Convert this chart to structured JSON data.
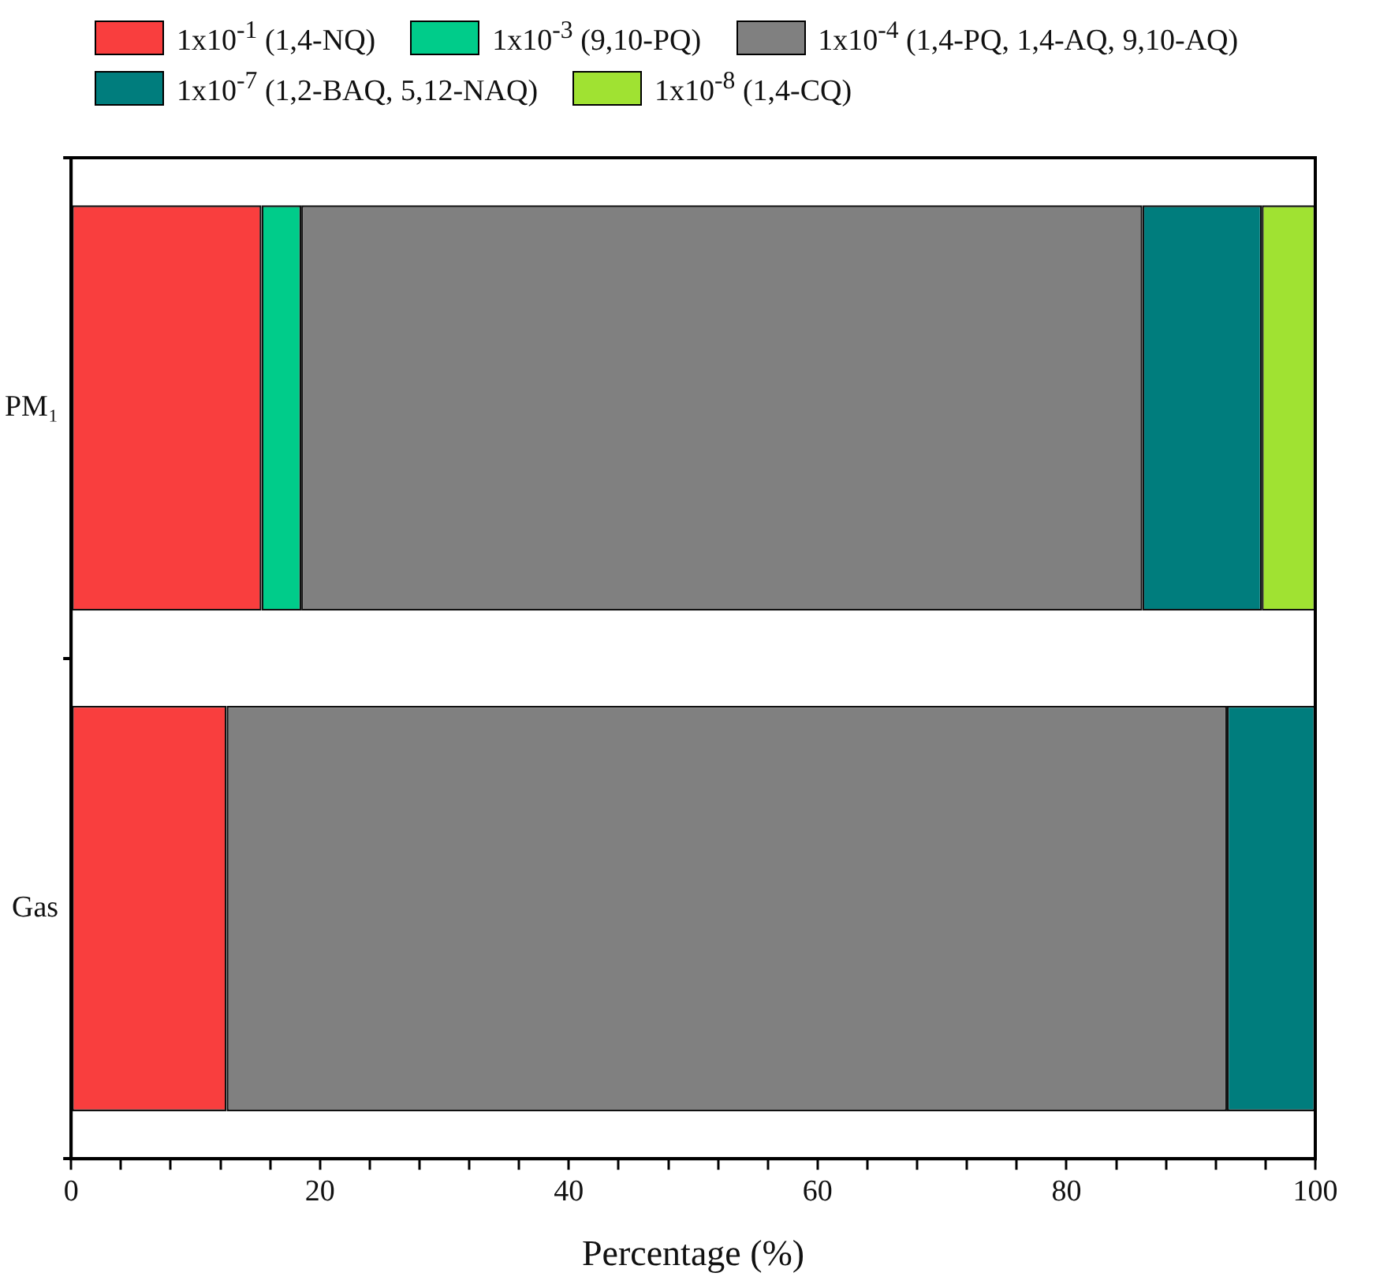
{
  "chart_data": {
    "type": "bar",
    "orientation": "horizontal",
    "stacked": true,
    "xlabel": "Percentage (%)",
    "categories": [
      "PM₁",
      "Gas"
    ],
    "series": [
      {
        "name": "1x10$^{-1}$ (1,4-NQ)",
        "color": "#f93e3e",
        "values": [
          15.3,
          12.5
        ]
      },
      {
        "name": "1x10$^{-3}$ (9,10-PQ)",
        "color": "#00cc8a",
        "values": [
          3.2,
          null
        ]
      },
      {
        "name": "1x10$^{-4}$ (1,4-PQ, 1,4-AQ, 9,10-AQ)",
        "color": "#808080",
        "values": [
          67.6,
          80.4
        ]
      },
      {
        "name": "1x10$^{-7}$ (1,2-BAQ, 5,12-NAQ)",
        "color": "#007d7d",
        "values": [
          9.6,
          7.1
        ]
      },
      {
        "name": "1x10$^{-8}$ (1,4-CQ)",
        "color": "#a0e232",
        "values": [
          4.3,
          null
        ]
      }
    ],
    "xlim": [
      0,
      100
    ],
    "xticks": [
      0,
      {
        "value": 4,
        "label": null
      },
      {
        "value": 8,
        "label": null
      },
      {
        "value": 12,
        "label": null
      },
      {
        "value": 16,
        "label": null
      },
      20,
      {
        "value": 24,
        "label": null
      },
      {
        "value": 28,
        "label": null
      },
      {
        "value": 32,
        "label": null
      },
      {
        "value": 36,
        "label": null
      },
      40,
      {
        "value": 44,
        "label": null
      },
      {
        "value": 48,
        "label": null
      },
      {
        "value": 52,
        "label": null
      },
      {
        "value": 56,
        "label": null
      },
      60,
      {
        "value": 64,
        "label": null
      },
      {
        "value": 68,
        "label": null
      },
      {
        "value": 72,
        "label": null
      },
      {
        "value": 76,
        "label": null
      },
      80,
      {
        "value": 84,
        "label": null
      },
      {
        "value": 88,
        "label": null
      },
      {
        "value": 92,
        "label": null
      },
      {
        "value": 96,
        "label": null
      },
      100
    ],
    "grid": false,
    "legend": "top"
  }
}
